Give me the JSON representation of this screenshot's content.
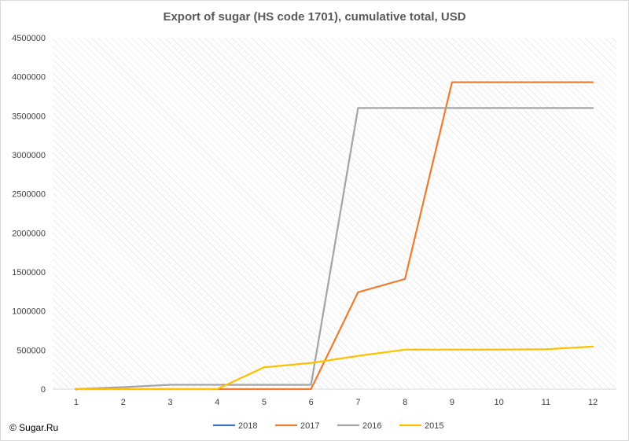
{
  "chart_data": {
    "type": "line",
    "title": "Export of sugar (HS code 1701), cumulative total, USD",
    "xlabel": "",
    "ylabel": "",
    "x": [
      "1",
      "2",
      "3",
      "4",
      "5",
      "6",
      "7",
      "8",
      "9",
      "10",
      "11",
      "12"
    ],
    "ylim": [
      0,
      4500000
    ],
    "yticks": [
      "0",
      "500000",
      "1000000",
      "1500000",
      "2000000",
      "2500000",
      "3000000",
      "3500000",
      "4000000",
      "4500000"
    ],
    "yticks_values": [
      0,
      500000,
      1000000,
      1500000,
      2000000,
      2500000,
      3000000,
      3500000,
      4000000,
      4500000
    ],
    "grid": false,
    "plot_background": "hatched",
    "legend_position": "bottom",
    "series": [
      {
        "name": "2018",
        "color": "#4472c4",
        "values": [
          0,
          null,
          null,
          null,
          null,
          null,
          null,
          null,
          null,
          null,
          null,
          null
        ]
      },
      {
        "name": "2017",
        "color": "#ed7d31",
        "values": [
          0,
          0,
          0,
          0,
          0,
          0,
          1240000,
          1410000,
          3930000,
          3930000,
          3930000,
          3930000
        ]
      },
      {
        "name": "2016",
        "color": "#a5a5a5",
        "values": [
          0,
          25000,
          55000,
          55000,
          55000,
          55000,
          3600000,
          3600000,
          3600000,
          3600000,
          3600000,
          3600000
        ]
      },
      {
        "name": "2015",
        "color": "#ffc000",
        "values": [
          0,
          0,
          0,
          0,
          280000,
          335000,
          425000,
          505000,
          505000,
          505000,
          510000,
          545000
        ]
      }
    ]
  },
  "credit": "© Sugar.Ru"
}
